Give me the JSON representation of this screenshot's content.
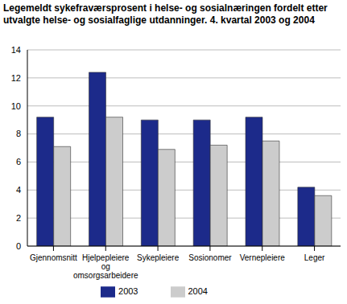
{
  "chart_data": {
    "type": "bar",
    "title": "Legemeldt sykefraværsprosent i helse- og sosialnæringen fordelt etter utvalgte helse- og sosialfaglige utdanninger. 4. kvartal 2003 og 2004",
    "categories": [
      "Gjennomsnitt",
      "Hjelpepleiere og omsorgsarbeidere",
      "Sykepleiere",
      "Sosionomer",
      "Vernepleiere",
      "Leger"
    ],
    "series": [
      {
        "name": "2003",
        "color": "#1c2a8a",
        "values": [
          9.2,
          12.4,
          9.0,
          9.0,
          9.2,
          4.2
        ]
      },
      {
        "name": "2004",
        "color": "#cccccc",
        "values": [
          7.1,
          9.2,
          6.9,
          7.2,
          7.5,
          3.6
        ]
      }
    ],
    "ylim": [
      0,
      14
    ],
    "yticks": [
      0,
      2,
      4,
      6,
      8,
      10,
      12,
      14
    ],
    "grid": true,
    "legend": "bottom"
  }
}
